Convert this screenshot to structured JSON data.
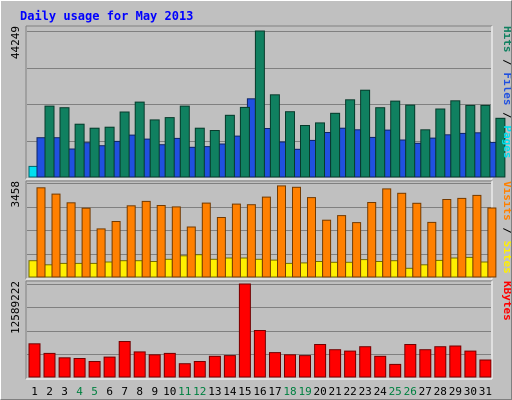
{
  "chart_data": {
    "type": "bar",
    "title": "Daily usage for May 2013",
    "categories": [
      "1",
      "2",
      "3",
      "4",
      "5",
      "6",
      "7",
      "8",
      "9",
      "10",
      "11",
      "12",
      "13",
      "14",
      "15",
      "16",
      "17",
      "18",
      "19",
      "20",
      "21",
      "22",
      "23",
      "24",
      "25",
      "26",
      "27",
      "28",
      "29",
      "30",
      "31"
    ],
    "weekend_days": [
      "4",
      "5",
      "11",
      "12",
      "18",
      "19",
      "25",
      "26"
    ],
    "panels": [
      {
        "id": "hits",
        "max_label": "44249",
        "ylim": [
          0,
          44249
        ],
        "series": [
          {
            "name": "Pages",
            "color": "#00e0f0",
            "values": [
              3200,
              3500,
              3400,
              3300,
              3600,
              3500,
              3800,
              3700,
              3600,
              3500,
              3300,
              3500,
              3700,
              3900,
              4500,
              4600,
              4200,
              3800,
              3700,
              3600,
              4000,
              5700,
              4300,
              4000,
              4200,
              3500,
              4100,
              4300,
              4200,
              5000,
              4700
            ]
          },
          {
            "name": "Files",
            "color": "#2050e0",
            "values": [
              11900,
              11900,
              8500,
              10400,
              9500,
              10800,
              12700,
              11500,
              9800,
              11700,
              9000,
              9200,
              10000,
              12400,
              23700,
              14700,
              10600,
              8400,
              11100,
              13500,
              14800,
              14300,
              12000,
              14200,
              11200,
              10200,
              11800,
              12800,
              13200,
              13400,
              10500
            ]
          },
          {
            "name": "Hits",
            "color": "#108060",
            "values": [
              21500,
              21000,
              16000,
              14800,
              15100,
              19700,
              22700,
              17300,
              18000,
              21500,
              14800,
              14100,
              18700,
              21100,
              44249,
              24900,
              19800,
              15600,
              16400,
              19300,
              23400,
              26300,
              21000,
              23000,
              21800,
              14300,
              20600,
              23100,
              21700,
              21700,
              17800
            ]
          }
        ]
      },
      {
        "id": "visits",
        "max_label": "3458",
        "ylim": [
          0,
          3458
        ],
        "series": [
          {
            "name": "Sites",
            "color": "#fff000",
            "values": [
              600,
              450,
              500,
              500,
              500,
              550,
              600,
              600,
              570,
              650,
              780,
              820,
              650,
              700,
              700,
              650,
              620,
              500,
              520,
              570,
              540,
              540,
              640,
              570,
              600,
              320,
              450,
              610,
              700,
              720,
              550
            ]
          },
          {
            "name": "Visits",
            "color": "#ff8000",
            "values": [
              3280,
              3050,
              2730,
              2530,
              1770,
              2040,
              2620,
              2780,
              2630,
              2580,
              1840,
              2720,
              2190,
              2680,
              2660,
              2940,
              3350,
              3300,
              2920,
              2090,
              2260,
              2000,
              2740,
              3240,
              3080,
              2710,
              2010,
              2850,
              2890,
              3000,
              2540
            ]
          }
        ]
      },
      {
        "id": "kbytes",
        "max_label": "12589222",
        "ylim": [
          0,
          12589222
        ],
        "series": [
          {
            "name": "KBytes",
            "color": "#ff0000",
            "values": [
              4500000,
              3200000,
              2600000,
              2500000,
              2100000,
              2700000,
              4800000,
              3400000,
              3000000,
              3200000,
              1800000,
              2100000,
              2800000,
              2900000,
              12589222,
              6300000,
              3300000,
              3000000,
              2900000,
              4400000,
              3700000,
              3500000,
              4100000,
              2800000,
              1700000,
              4400000,
              3700000,
              4100000,
              4200000,
              3500000,
              2300000
            ]
          }
        ]
      }
    ]
  }
}
